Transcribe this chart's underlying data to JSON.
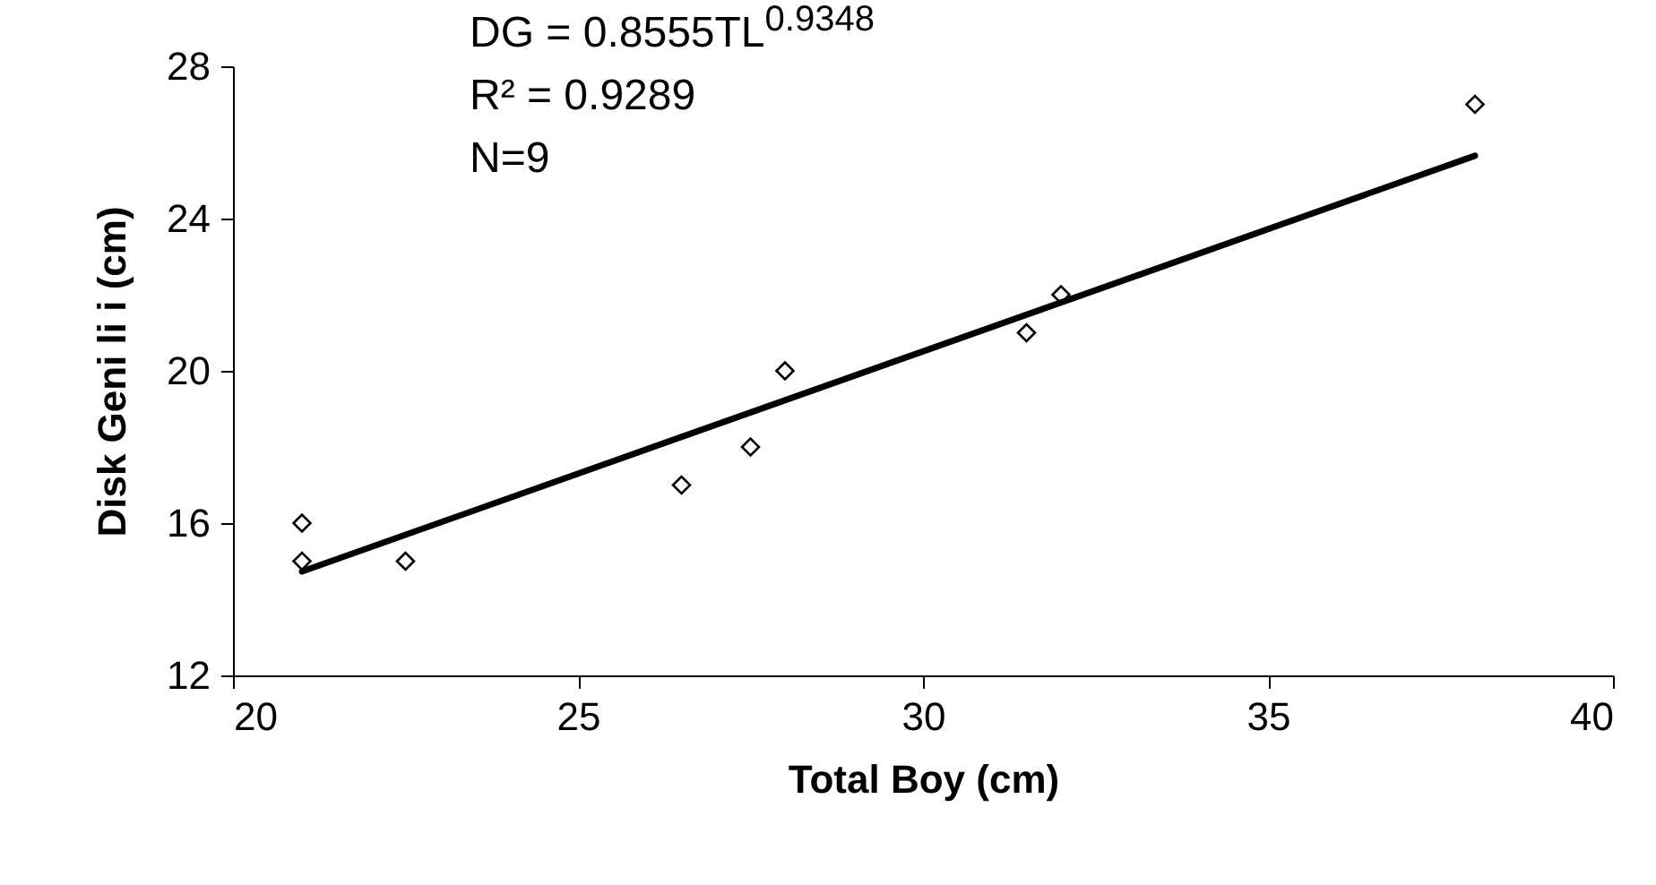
{
  "chart_data": {
    "type": "scatter",
    "xlabel": "Total Boy (cm)",
    "ylabel": "Disk Geni li i (cm)",
    "annotations": [
      "DG = 0.8555TL$^{0.9348}$",
      "R² = 0.9289",
      "N=9"
    ],
    "xlim": [
      20,
      40
    ],
    "xticks": [
      20,
      25,
      30,
      35,
      40
    ],
    "ylim": [
      12,
      28
    ],
    "yticks": [
      12,
      16,
      20,
      24,
      28
    ],
    "grid": false,
    "marker": "diamond",
    "series": [
      {
        "color": "#000000",
        "x": [
          21,
          21,
          22.5,
          26.5,
          27.5,
          28,
          31.5,
          32,
          38
        ],
        "values": [
          16,
          15,
          15,
          17,
          18,
          20,
          21,
          22,
          27
        ]
      },
      {
        "type": "line",
        "color": "#000000",
        "marker": "none",
        "x": [
          21,
          38
        ],
        "values": [
          14.73,
          25.65
        ]
      }
    ]
  }
}
